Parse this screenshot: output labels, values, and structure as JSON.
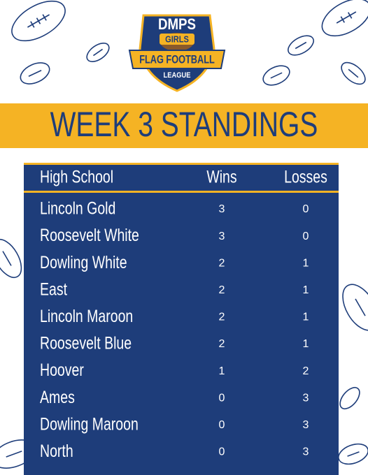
{
  "logo": {
    "line1": "DMPS",
    "line2": "GIRLS",
    "line3": "FLAG FOOTBALL",
    "line4": "LEAGUE"
  },
  "title": "WEEK 3 STANDINGS",
  "table": {
    "header": [
      "High School",
      "Wins",
      "Losses"
    ],
    "rows": [
      [
        "Lincoln Gold",
        3,
        0
      ],
      [
        "Roosevelt White",
        3,
        0
      ],
      [
        "Dowling White",
        2,
        1
      ],
      [
        "East",
        2,
        1
      ],
      [
        "Lincoln Maroon",
        2,
        1
      ],
      [
        "Roosevelt Blue",
        2,
        1
      ],
      [
        "Hoover",
        1,
        2
      ],
      [
        "Ames",
        0,
        3
      ],
      [
        "Dowling Maroon",
        0,
        3
      ],
      [
        "North",
        0,
        3
      ]
    ]
  }
}
